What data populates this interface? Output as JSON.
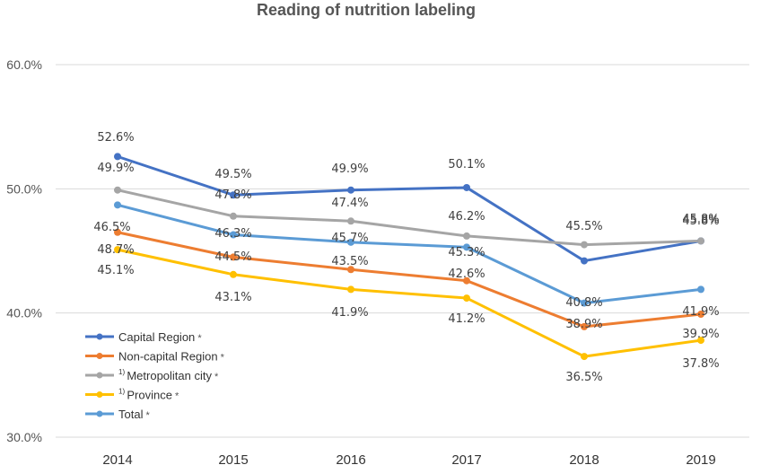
{
  "chart_data": {
    "type": "line",
    "title": "Reading of nutrition labeling",
    "categories": [
      "2014",
      "2015",
      "2016",
      "2017",
      "2018",
      "2019"
    ],
    "ylim": [
      30,
      60
    ],
    "yticks": [
      "30.0%",
      "40.0%",
      "50.0%",
      "60.0%"
    ],
    "grid": true,
    "legend": "bottom-left",
    "series": [
      {
        "name": "Capital Region",
        "marker": "*",
        "color": "#4472C4",
        "values": [
          52.6,
          49.5,
          49.9,
          50.1,
          44.2,
          45.8
        ],
        "labels": [
          "52.6%",
          "49.5%",
          "49.9%",
          "50.1%",
          "",
          "45.8%"
        ]
      },
      {
        "name": "Non-capital Region",
        "marker": "*",
        "color": "#ED7D31",
        "values": [
          46.5,
          44.5,
          43.5,
          42.6,
          38.9,
          39.9
        ],
        "labels": [
          "46.5%",
          "44.5%",
          "43.5%",
          "42.6%",
          "38.9%",
          "39.9%"
        ]
      },
      {
        "name": "Metropolitan city",
        "sup": "1)",
        "marker": "*",
        "color": "#A5A5A5",
        "values": [
          49.9,
          47.8,
          47.4,
          46.2,
          45.5,
          45.8
        ],
        "labels": [
          "49.9%",
          "47.8%",
          "47.4%",
          "46.2%",
          "45.5%",
          "45.8%"
        ]
      },
      {
        "name": "Province",
        "sup": "1)",
        "marker": "*",
        "color": "#FFC000",
        "values": [
          45.1,
          43.1,
          41.9,
          41.2,
          36.5,
          37.8
        ],
        "labels": [
          "45.1%",
          "43.1%",
          "41.9%",
          "41.2%",
          "36.5%",
          "37.8%"
        ]
      },
      {
        "name": "Total",
        "marker": "*",
        "color": "#5B9BD5",
        "values": [
          48.7,
          46.3,
          45.7,
          45.3,
          40.8,
          41.9
        ],
        "labels": [
          "48.7%",
          "46.3%",
          "45.7%",
          "45.3%",
          "40.8%",
          "41.9%"
        ]
      }
    ]
  }
}
